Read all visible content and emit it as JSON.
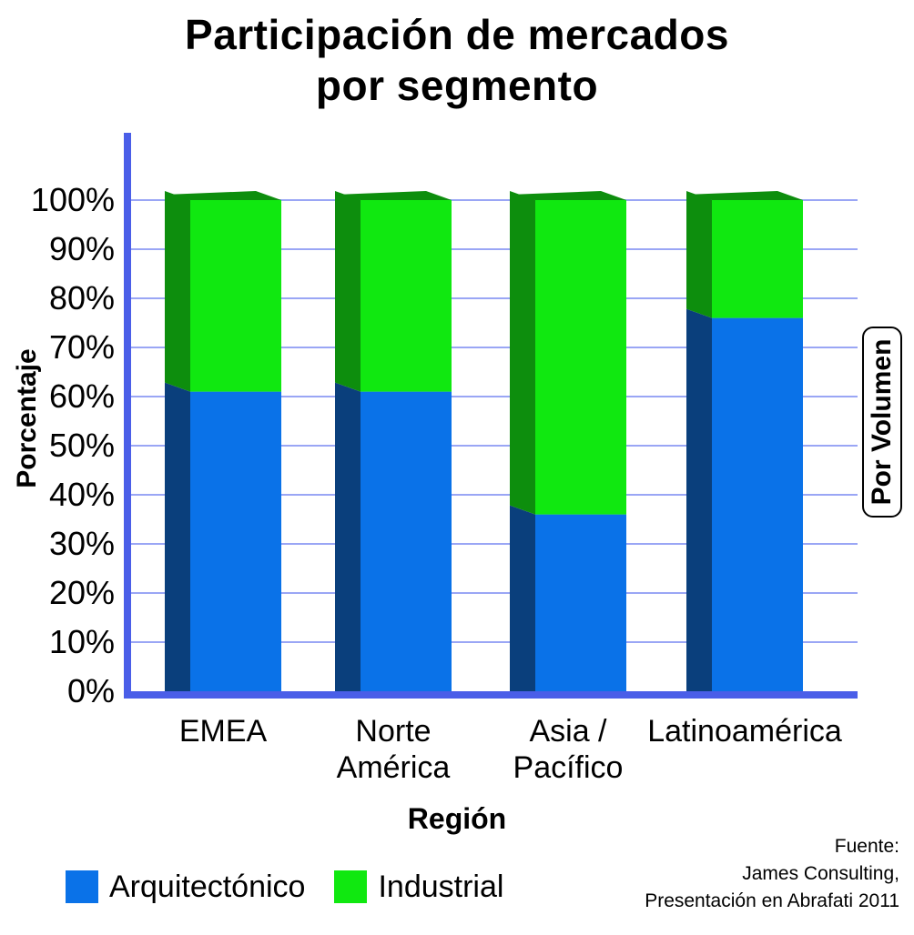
{
  "chart_data": {
    "type": "bar",
    "stacked": true,
    "title_lines": [
      "Participación de mercados",
      "por segmento"
    ],
    "xlabel": "Región",
    "ylabel": "Porcentaje",
    "side_label": "Por Volumen",
    "categories": [
      [
        "EMEA"
      ],
      [
        "Norte",
        "América"
      ],
      [
        "Asia /",
        "Pacífico"
      ],
      [
        "Latinoamérica"
      ]
    ],
    "series": [
      {
        "name": "Arquitectónico",
        "color": "#0a72e8",
        "side_color": "#0a3f7c",
        "values": [
          61,
          61,
          36,
          76
        ]
      },
      {
        "name": "Industrial",
        "color": "#10e810",
        "side_color": "#0d8e0d",
        "values": [
          39,
          39,
          64,
          24
        ]
      }
    ],
    "ylim": [
      0,
      100
    ],
    "yticks": [
      "0%",
      "10%",
      "20%",
      "30%",
      "40%",
      "50%",
      "60%",
      "70%",
      "80%",
      "90%",
      "100%"
    ],
    "grid": true,
    "grid_color": "#9aa6f5",
    "axis_color": "#4a5ee8",
    "legend_position": "bottom-left",
    "source_lines": [
      "Fuente:",
      "James Consulting,",
      "Presentación en Abrafati 2011"
    ]
  }
}
